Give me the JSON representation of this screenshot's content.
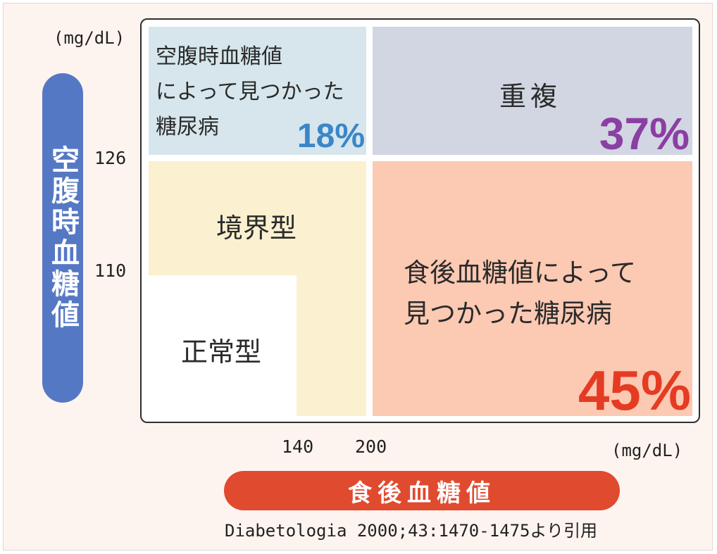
{
  "y_axis": {
    "unit": "(mg/dL)",
    "title": "空腹時血糖値",
    "ticks": [
      "126",
      "110"
    ]
  },
  "x_axis": {
    "unit": "(mg/dL)",
    "title": "食後血糖値",
    "ticks": [
      "140",
      "200"
    ]
  },
  "regions": {
    "fasting_only": {
      "label_lines": [
        "空腹時血糖値",
        "によって見つかった",
        "糖尿病"
      ],
      "percent": "18%"
    },
    "overlap": {
      "label": "重複",
      "percent": "37%"
    },
    "borderline": {
      "label": "境界型"
    },
    "normal": {
      "label": "正常型"
    },
    "postprandial_only": {
      "label_lines": [
        "食後血糖値によって",
        "見つかった糖尿病"
      ],
      "percent": "45%"
    }
  },
  "source": "Diabetologia 2000;43:1470-1475より引用",
  "colors": {
    "fasting_only": "#d6e6ec",
    "overlap": "#d2d5e2",
    "borderline": "#fbf0cf",
    "postprandial_only": "#fcc9b3",
    "percent_18": "#3b86c8",
    "percent_37": "#8a3fa3",
    "percent_45": "#e63b23",
    "y_pill": "#5578c4",
    "x_pill": "#e04a2f"
  }
}
